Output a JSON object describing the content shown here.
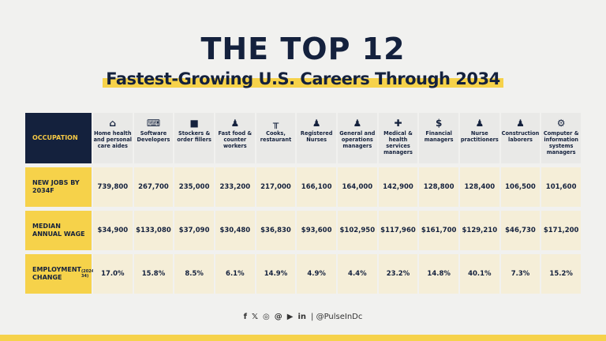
{
  "title": "THE TOP 12",
  "subtitle": "Fastest-Growing U.S. Careers Through 2034",
  "chart_data": {
    "type": "table",
    "corner_label": "OCCUPATION",
    "columns": [
      {
        "name": "Home health and personal care aides",
        "icon": "house-shield-icon"
      },
      {
        "name": "Software Developers",
        "icon": "code-window-icon"
      },
      {
        "name": "Stockers & order fillers",
        "icon": "box-icon"
      },
      {
        "name": "Fast food & counter workers",
        "icon": "counter-worker-icon"
      },
      {
        "name": "Cooks, restaurant",
        "icon": "table-icon"
      },
      {
        "name": "Registered Nurses",
        "icon": "nurse-icon"
      },
      {
        "name": "General and operations managers",
        "icon": "manager-icon"
      },
      {
        "name": "Medical & health services managers",
        "icon": "medical-shield-icon"
      },
      {
        "name": "Financial managers",
        "icon": "money-bag-icon"
      },
      {
        "name": "Nurse practitioners",
        "icon": "doctor-icon"
      },
      {
        "name": "Construction laborers",
        "icon": "hardhat-worker-icon"
      },
      {
        "name": "Computer & information systems managers",
        "icon": "computer-gear-icon"
      }
    ],
    "rows": [
      {
        "label": "NEW JOBS BY 2034F",
        "label_note": "",
        "values": [
          "739,800",
          "267,700",
          "235,000",
          "233,200",
          "217,000",
          "166,100",
          "164,000",
          "142,900",
          "128,800",
          "128,400",
          "106,500",
          "101,600"
        ]
      },
      {
        "label": "MEDIAN ANNUAL WAGE",
        "label_note": "",
        "values": [
          "$34,900",
          "$133,080",
          "$37,090",
          "$30,480",
          "$36,830",
          "$93,600",
          "$102,950",
          "$117,960",
          "$161,700",
          "$129,210",
          "$46,730",
          "$171,200"
        ]
      },
      {
        "label": "EMPLOYMENT CHANGE",
        "label_note": "(2024-34)",
        "values": [
          "17.0%",
          "15.8%",
          "8.5%",
          "6.1%",
          "14.9%",
          "4.9%",
          "4.4%",
          "23.2%",
          "14.8%",
          "40.1%",
          "7.3%",
          "15.2%"
        ]
      }
    ]
  },
  "footer": {
    "icons": [
      "facebook-icon",
      "x-icon",
      "instagram-icon",
      "threads-icon",
      "youtube-icon",
      "linkedin-icon"
    ],
    "glyphs": [
      "f",
      "𝕏",
      "◎",
      "@",
      "▶",
      "in"
    ],
    "handle": "| @PulseInDc"
  },
  "colors": {
    "navy": "#14213d",
    "yellow": "#f6d24a",
    "cell": "#f5eed8"
  }
}
